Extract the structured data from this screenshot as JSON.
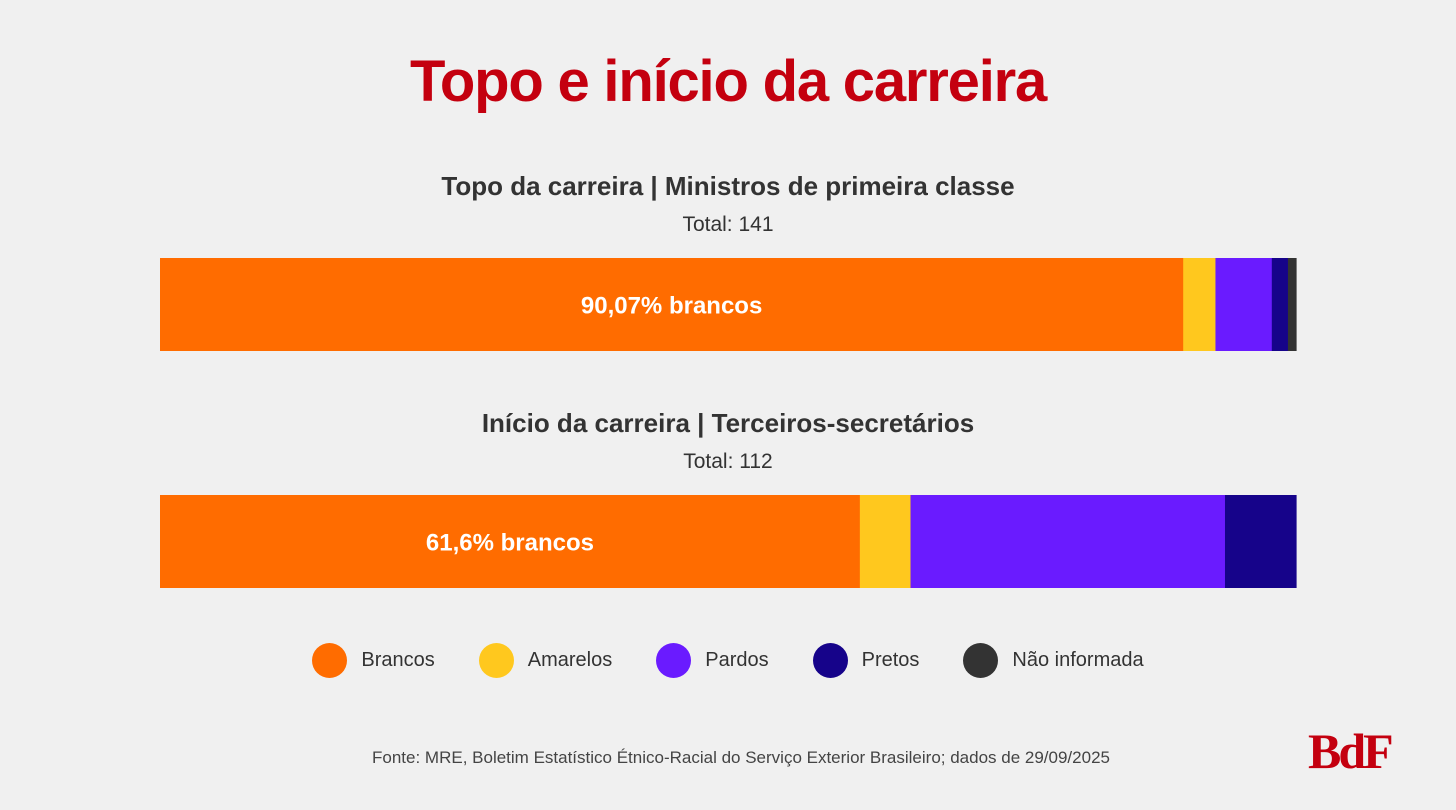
{
  "title": "Topo e início da carreira",
  "colors": {
    "Brancos": "#ff6c00",
    "Amarelos": "#ffc81e",
    "Pardos": "#6a1bff",
    "Pretos": "#16038a",
    "Não informada": "#333333"
  },
  "chart_data": {
    "type": "bar",
    "orientation": "horizontal",
    "stacked": true,
    "normalized_to": 100,
    "categories": [
      "Topo da carreira",
      "Início da carreira"
    ],
    "bars": [
      {
        "subtitle": "Topo da carreira | Ministros de primeira classe",
        "total_label": "Total: 141",
        "highlight_label": "90,07% brancos",
        "segments": [
          {
            "name": "Brancos",
            "value": 90.07
          },
          {
            "name": "Amarelos",
            "value": 2.84
          },
          {
            "name": "Pardos",
            "value": 4.96
          },
          {
            "name": "Pretos",
            "value": 1.42
          },
          {
            "name": "Não informada",
            "value": 0.71
          }
        ]
      },
      {
        "subtitle": "Início da carreira | Terceiros-secretários",
        "total_label": "Total: 112",
        "highlight_label": "61,6% brancos",
        "segments": [
          {
            "name": "Brancos",
            "value": 61.6
          },
          {
            "name": "Amarelos",
            "value": 4.46
          },
          {
            "name": "Pardos",
            "value": 27.68
          },
          {
            "name": "Pretos",
            "value": 6.25
          },
          {
            "name": "Não informada",
            "value": 0
          }
        ]
      }
    ],
    "legend": {
      "placement": "bottom",
      "entries": [
        "Brancos",
        "Amarelos",
        "Pardos",
        "Pretos",
        "Não informada"
      ]
    }
  },
  "source": "Fonte: MRE, Boletim Estatístico Étnico-Racial do Serviço Exterior Brasileiro; dados de 29/09/2025",
  "logo": "BdF"
}
